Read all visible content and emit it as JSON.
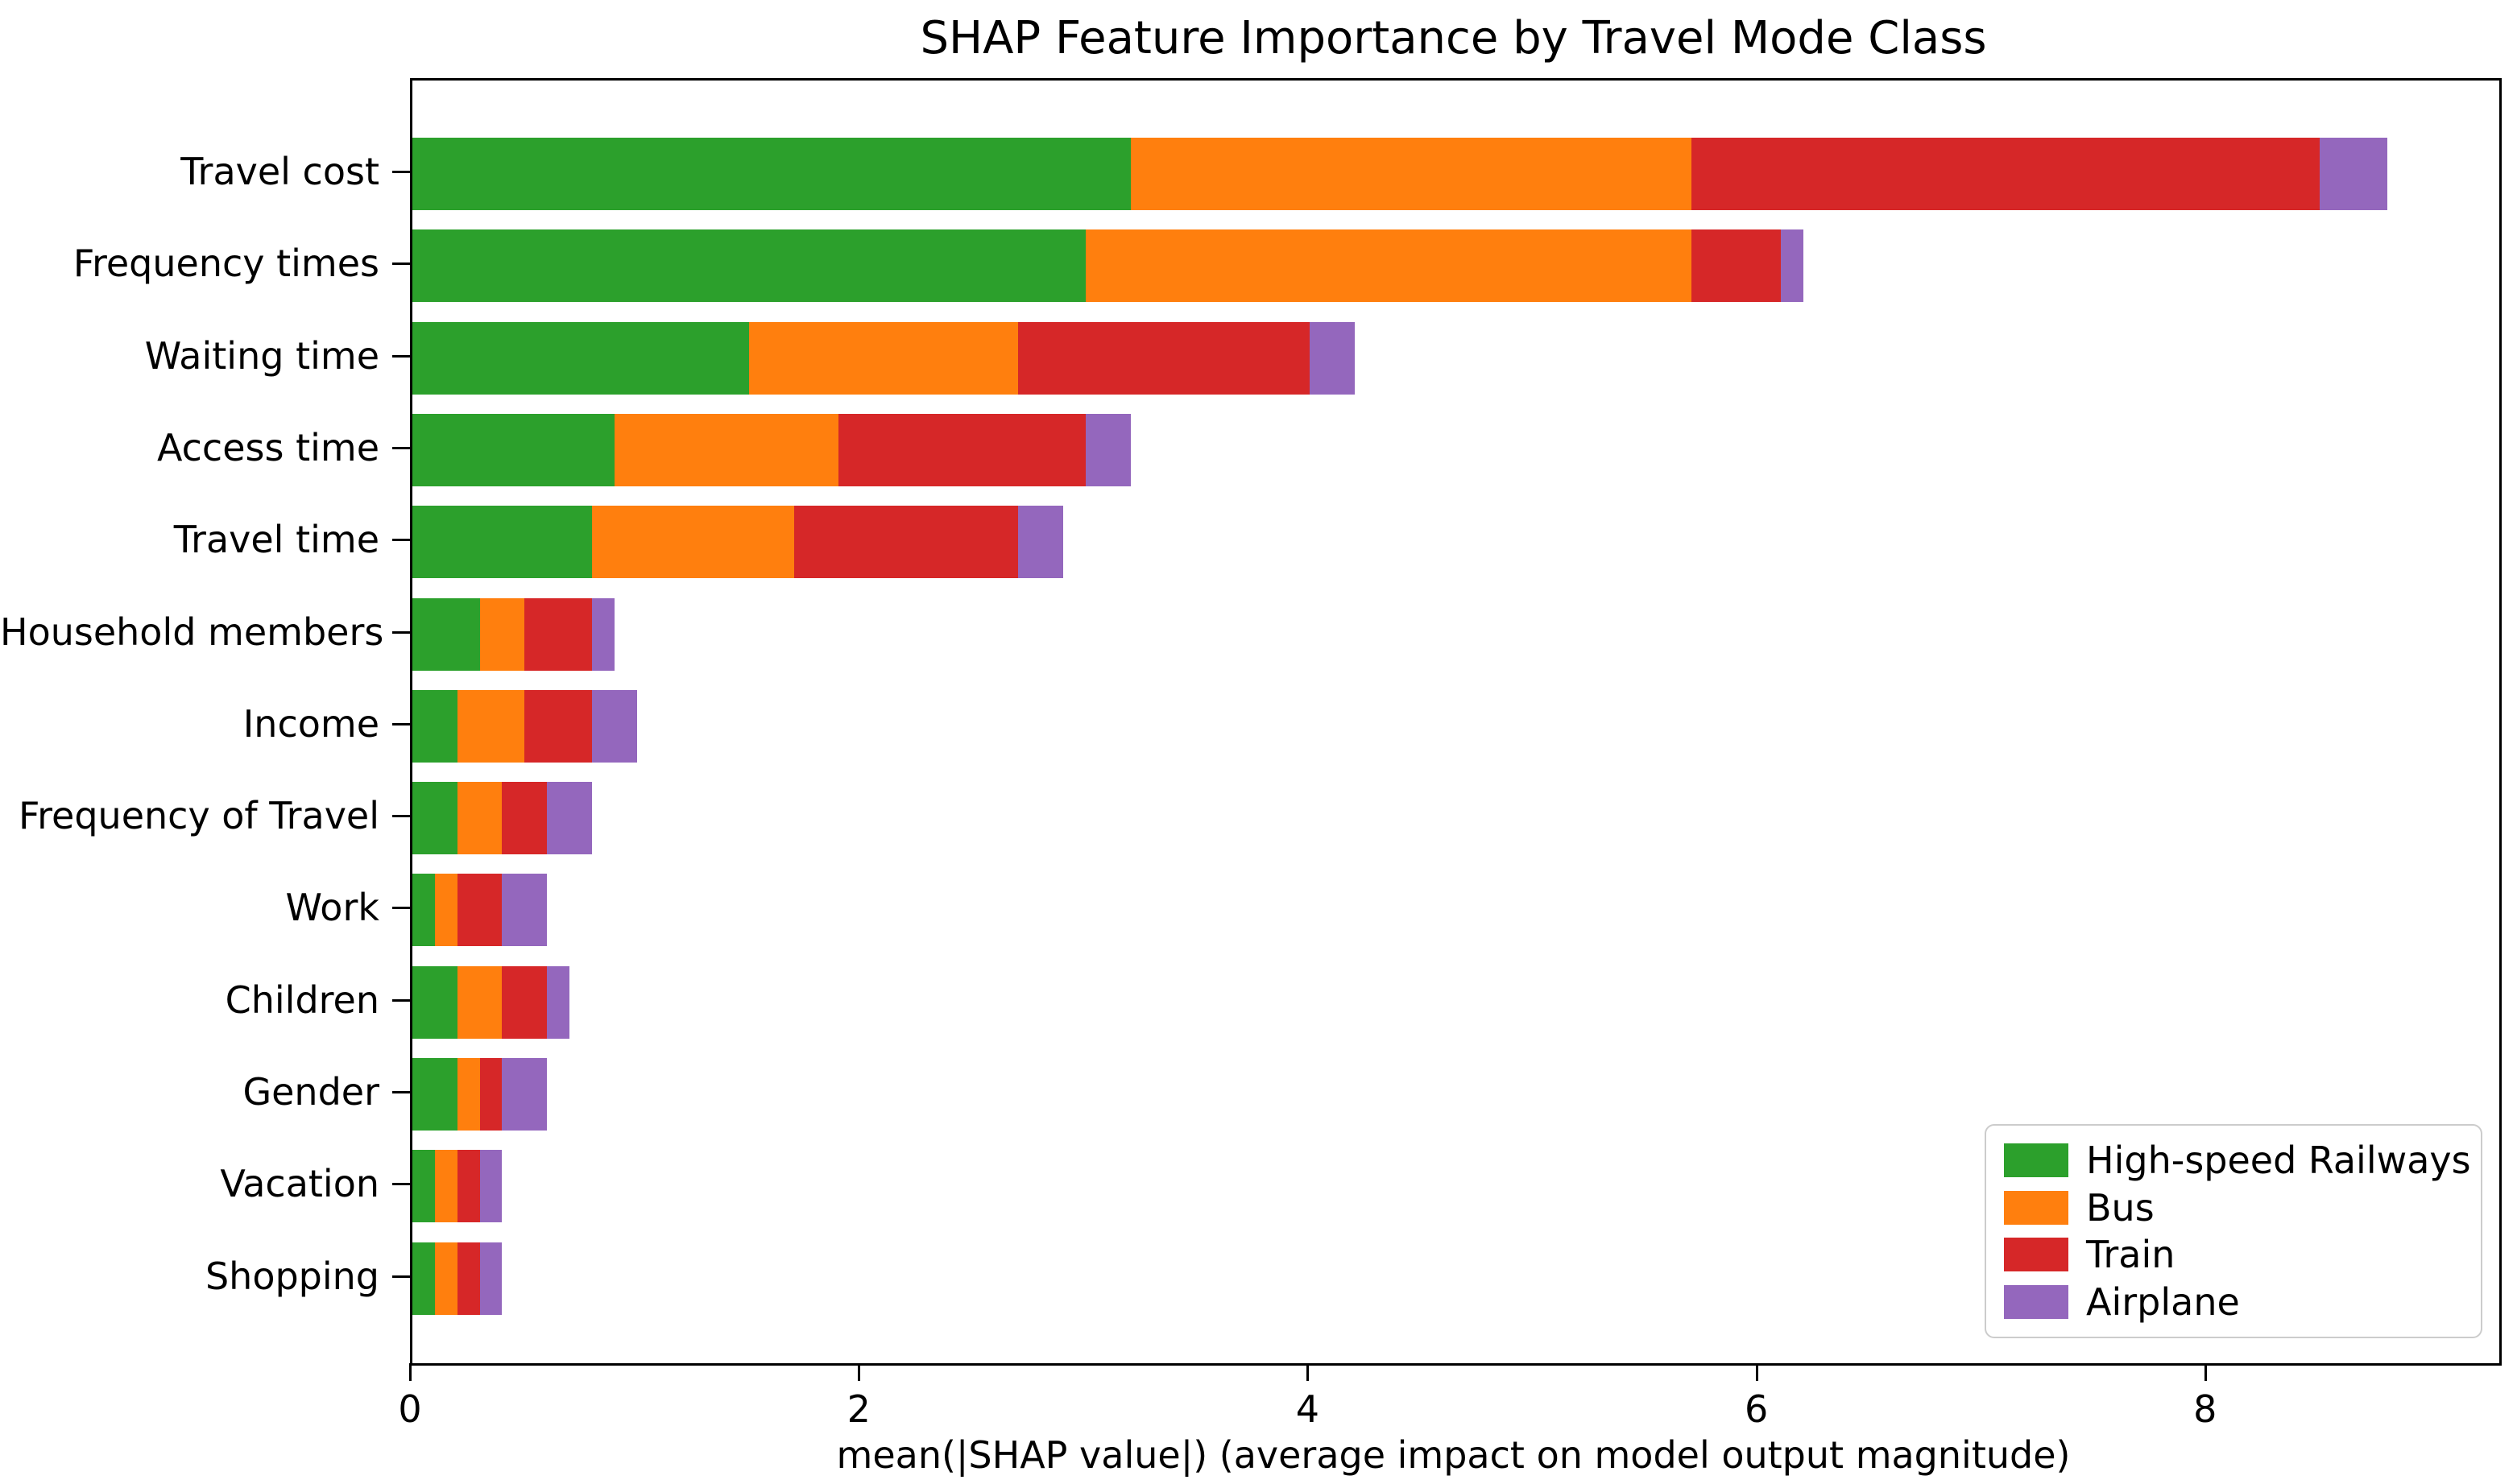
{
  "chart_data": {
    "type": "bar",
    "orientation": "horizontal",
    "stacked": true,
    "title": "SHAP Feature Importance by Travel Mode Class",
    "xlabel": "mean(|SHAP value|) (average impact on model output magnitude)",
    "ylabel": "",
    "categories": [
      "Travel cost",
      "Frequency times",
      "Waiting time",
      "Access time",
      "Travel time",
      "Household members",
      "Income",
      "Frequency of Travel",
      "Work",
      "Children",
      "Gender",
      "Vacation",
      "Shopping"
    ],
    "series": [
      {
        "name": "High-speed Railways",
        "color": "#2ca02c",
        "values": [
          3.2,
          3.0,
          1.5,
          0.9,
          0.8,
          0.3,
          0.2,
          0.2,
          0.1,
          0.2,
          0.2,
          0.1,
          0.1
        ]
      },
      {
        "name": "Bus",
        "color": "#ff7f0e",
        "values": [
          2.5,
          2.7,
          1.2,
          1.0,
          0.9,
          0.2,
          0.3,
          0.2,
          0.1,
          0.2,
          0.1,
          0.1,
          0.1
        ]
      },
      {
        "name": "Train",
        "color": "#d62728",
        "values": [
          2.8,
          0.4,
          1.3,
          1.1,
          1.0,
          0.3,
          0.3,
          0.2,
          0.2,
          0.2,
          0.1,
          0.1,
          0.1
        ]
      },
      {
        "name": "Airplane",
        "color": "#9467bd",
        "values": [
          0.3,
          0.1,
          0.2,
          0.2,
          0.2,
          0.1,
          0.2,
          0.2,
          0.2,
          0.1,
          0.2,
          0.1,
          0.1
        ]
      }
    ],
    "stack_totals": [
      8.8,
      6.2,
      4.2,
      3.2,
      2.9,
      0.9,
      1.0,
      0.8,
      0.6,
      0.7,
      0.6,
      0.4,
      0.4
    ],
    "x_ticks": [
      "0",
      "2",
      "4",
      "6",
      "8"
    ],
    "x_tick_values": [
      0,
      2,
      4,
      6,
      8
    ],
    "xlim": [
      0,
      9.3
    ],
    "grid": false,
    "legend_position": "lower right",
    "text_color": "#000000",
    "spine_color": "#000000"
  }
}
